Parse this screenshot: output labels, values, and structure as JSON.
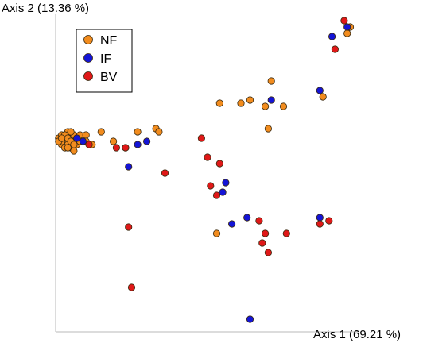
{
  "chart_data": {
    "type": "scatter",
    "title": "",
    "xlabel": "Axis 1 (69.21 %)",
    "ylabel": "Axis 2 (13.36 %)",
    "xlim": [
      0,
      100
    ],
    "ylim": [
      0,
      100
    ],
    "grid": false,
    "legend_position": "top-left",
    "series": [
      {
        "name": "NF",
        "color": "#F28C1E",
        "points": [
          [
            1,
            61
          ],
          [
            2,
            62
          ],
          [
            2,
            59
          ],
          [
            3,
            61
          ],
          [
            3,
            60
          ],
          [
            4,
            62
          ],
          [
            4,
            59
          ],
          [
            5,
            61
          ],
          [
            5,
            58
          ],
          [
            6,
            60
          ],
          [
            6,
            62
          ],
          [
            7,
            59
          ],
          [
            2,
            60
          ],
          [
            3,
            58
          ],
          [
            4,
            63
          ],
          [
            5,
            63
          ],
          [
            6,
            57
          ],
          [
            3,
            62
          ],
          [
            1,
            60
          ],
          [
            4,
            61
          ],
          [
            2,
            61
          ],
          [
            5,
            60
          ],
          [
            6,
            59
          ],
          [
            4,
            58
          ],
          [
            7,
            61
          ],
          [
            8,
            60
          ],
          [
            8,
            62
          ],
          [
            10,
            62
          ],
          [
            10,
            60
          ],
          [
            12,
            59
          ],
          [
            15,
            63
          ],
          [
            19,
            60
          ],
          [
            27,
            63
          ],
          [
            33,
            64
          ],
          [
            34,
            63
          ],
          [
            54,
            72
          ],
          [
            61,
            72
          ],
          [
            64,
            73
          ],
          [
            69,
            71
          ],
          [
            71,
            79
          ],
          [
            75,
            71
          ],
          [
            70,
            64
          ],
          [
            53,
            31
          ],
          [
            88,
            74
          ],
          [
            96,
            94
          ],
          [
            97,
            96
          ]
        ]
      },
      {
        "name": "IF",
        "color": "#1414D6",
        "points": [
          [
            7,
            61
          ],
          [
            9,
            60
          ],
          [
            30,
            60
          ],
          [
            27,
            59
          ],
          [
            23,
            58
          ],
          [
            24,
            52
          ],
          [
            56,
            47
          ],
          [
            55,
            44
          ],
          [
            58,
            34
          ],
          [
            71,
            73
          ],
          [
            87,
            76
          ],
          [
            87,
            36
          ],
          [
            91,
            93
          ],
          [
            96,
            96
          ],
          [
            63,
            36
          ],
          [
            64,
            4
          ]
        ]
      },
      {
        "name": "BV",
        "color": "#E01818",
        "points": [
          [
            11,
            59
          ],
          [
            20,
            58
          ],
          [
            23,
            58
          ],
          [
            36,
            50
          ],
          [
            50,
            55
          ],
          [
            48,
            61
          ],
          [
            54,
            53
          ],
          [
            51,
            46
          ],
          [
            53,
            43
          ],
          [
            67,
            35
          ],
          [
            69,
            31
          ],
          [
            76,
            31
          ],
          [
            87,
            34
          ],
          [
            92,
            89
          ],
          [
            95,
            98
          ],
          [
            68,
            28
          ],
          [
            70,
            25
          ],
          [
            90,
            35
          ],
          [
            24,
            33
          ],
          [
            25,
            14
          ]
        ]
      }
    ]
  }
}
